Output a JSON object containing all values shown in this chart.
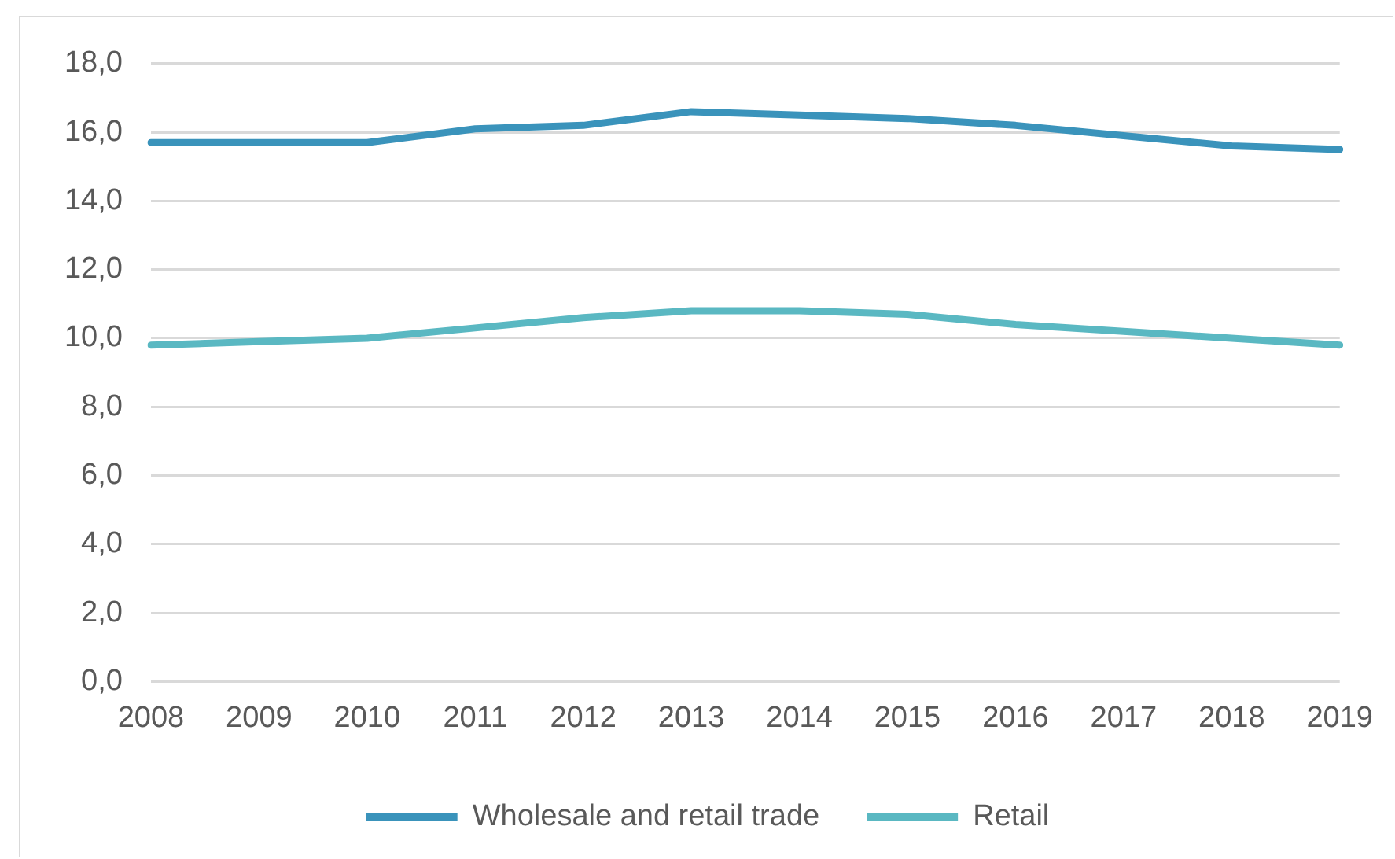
{
  "chart_data": {
    "type": "line",
    "categories": [
      "2008",
      "2009",
      "2010",
      "2011",
      "2012",
      "2013",
      "2014",
      "2015",
      "2016",
      "2017",
      "2018",
      "2019"
    ],
    "series": [
      {
        "name": "Wholesale and retail trade",
        "color": "#3a93bb",
        "values": [
          15.7,
          15.7,
          15.7,
          16.1,
          16.2,
          16.6,
          16.5,
          16.4,
          16.2,
          15.9,
          15.6,
          15.5
        ]
      },
      {
        "name": "Retail",
        "color": "#5ab8c2",
        "values": [
          9.8,
          9.9,
          10.0,
          10.3,
          10.6,
          10.8,
          10.8,
          10.7,
          10.4,
          10.2,
          10.0,
          9.8
        ]
      }
    ],
    "ylim": [
      0,
      18
    ],
    "yticks": [
      {
        "value": 0,
        "label": "0,0"
      },
      {
        "value": 2,
        "label": "2,0"
      },
      {
        "value": 4,
        "label": "4,0"
      },
      {
        "value": 6,
        "label": "6,0"
      },
      {
        "value": 8,
        "label": "8,0"
      },
      {
        "value": 10,
        "label": "10,0"
      },
      {
        "value": 12,
        "label": "12,0"
      },
      {
        "value": 14,
        "label": "14,0"
      },
      {
        "value": 16,
        "label": "16,0"
      },
      {
        "value": 18,
        "label": "18,0"
      }
    ],
    "grid": "y",
    "legend": "bottom",
    "marker": "none",
    "line_style": "solid"
  }
}
